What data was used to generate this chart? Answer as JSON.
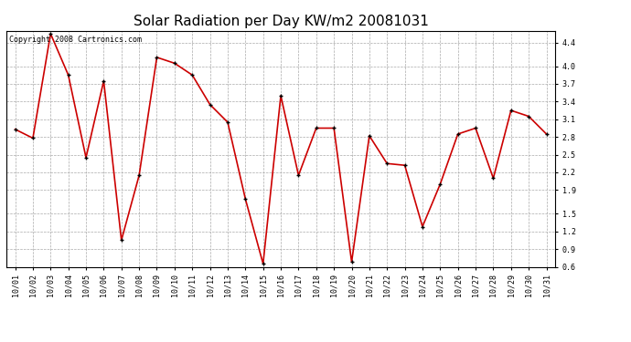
{
  "title": "Solar Radiation per Day KW/m2 20081031",
  "copyright_text": "Copyright 2008 Cartronics.com",
  "x_labels": [
    "10/01",
    "10/02",
    "10/03",
    "10/04",
    "10/05",
    "10/06",
    "10/07",
    "10/08",
    "10/09",
    "10/10",
    "10/11",
    "10/12",
    "10/13",
    "10/14",
    "10/15",
    "10/16",
    "10/17",
    "10/18",
    "10/19",
    "10/20",
    "10/21",
    "10/22",
    "10/23",
    "10/24",
    "10/25",
    "10/26",
    "10/27",
    "10/28",
    "10/29",
    "10/30",
    "10/31"
  ],
  "y_values": [
    2.93,
    2.78,
    4.55,
    3.85,
    2.45,
    3.75,
    1.05,
    2.15,
    4.15,
    4.05,
    3.85,
    3.35,
    3.05,
    1.75,
    0.65,
    3.5,
    2.15,
    2.95,
    2.95,
    0.68,
    2.82,
    2.35,
    2.32,
    1.28,
    2.0,
    2.85,
    2.95,
    2.1,
    3.25,
    3.15,
    2.85
  ],
  "line_color": "#cc0000",
  "marker_color": "#000000",
  "marker_size": 3,
  "line_width": 1.2,
  "ylim": [
    0.6,
    4.6
  ],
  "yticks": [
    0.6,
    0.9,
    1.2,
    1.5,
    1.9,
    2.2,
    2.5,
    2.8,
    3.1,
    3.4,
    3.7,
    4.0,
    4.4
  ],
  "background_color": "#ffffff",
  "grid_color": "#aaaaaa",
  "title_fontsize": 11,
  "tick_fontsize": 6,
  "copyright_fontsize": 6
}
